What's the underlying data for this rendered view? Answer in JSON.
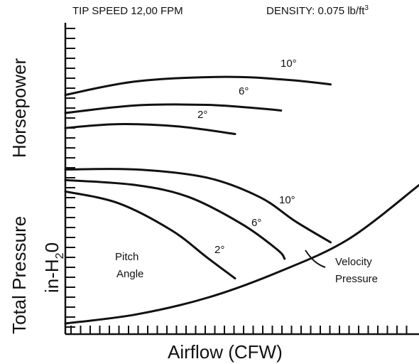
{
  "chart_data": {
    "type": "line",
    "header_left": "TIP SPEED 12,00 FPM",
    "header_right_prefix": "DENSITY: 0.075 lb/ft",
    "header_right_sup": "3",
    "ylabel_top": "Horsepower",
    "ylabel_bottom_line1": "Total Pressure",
    "ylabel_bottom_line2_base": "in-H",
    "ylabel_bottom_line2_sub": "2",
    "ylabel_bottom_line2_end": "0",
    "xlabel": "Airflow (CFW)",
    "x_range": [
      0,
      100
    ],
    "y_range": [
      0,
      100
    ],
    "grid": false,
    "horsepower_curves": [
      {
        "label": "10°",
        "points": [
          [
            0,
            76
          ],
          [
            20,
            80.5
          ],
          [
            45,
            82
          ],
          [
            63,
            81
          ],
          [
            75,
            79.5
          ]
        ]
      },
      {
        "label": "6°",
        "points": [
          [
            0,
            70
          ],
          [
            20,
            72.5
          ],
          [
            40,
            72.7
          ],
          [
            55,
            71.5
          ],
          [
            61,
            70.8
          ]
        ]
      },
      {
        "label": "2°",
        "points": [
          [
            0,
            65
          ],
          [
            15,
            66.3
          ],
          [
            32,
            65.5
          ],
          [
            48,
            63
          ]
        ]
      }
    ],
    "pressure_curves": [
      {
        "label": "10°",
        "points": [
          [
            0,
            51.2
          ],
          [
            20,
            51.2
          ],
          [
            40,
            48.5
          ],
          [
            55,
            42
          ],
          [
            65,
            34
          ],
          [
            75,
            27
          ]
        ]
      },
      {
        "label": "6°",
        "points": [
          [
            0,
            47.7
          ],
          [
            20,
            46
          ],
          [
            35,
            42
          ],
          [
            50,
            33
          ],
          [
            60,
            24.5
          ],
          [
            62,
            21.5
          ]
        ]
      },
      {
        "label": "2°",
        "points": [
          [
            0,
            43.9
          ],
          [
            15,
            40
          ],
          [
            30,
            31
          ],
          [
            40,
            22
          ],
          [
            48,
            15
          ]
        ]
      }
    ],
    "velocity_pressure": {
      "label_line1": "Velocity",
      "label_line2": "Pressure",
      "points": [
        [
          0,
          0
        ],
        [
          20,
          3
        ],
        [
          40,
          8.5
        ],
        [
          60,
          17
        ],
        [
          80,
          28
        ],
        [
          100,
          46
        ]
      ]
    },
    "annotation_line1": "Pitch",
    "annotation_line2": "Angle"
  }
}
